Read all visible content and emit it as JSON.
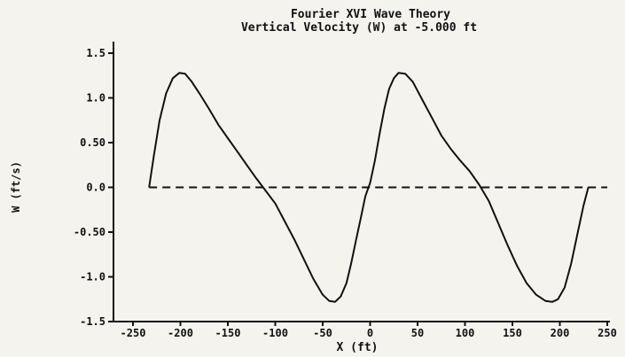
{
  "chart_data": {
    "type": "line",
    "title": "Fourier XVI   Wave Theory",
    "subtitle": "Vertical Velocity (W) at    -5.000 ft",
    "xlabel": "X  (ft)",
    "ylabel": "W (ft/s)",
    "xlim": [
      -250,
      250
    ],
    "ylim": [
      -1.5,
      1.5
    ],
    "xticks": [
      -250,
      -200,
      -150,
      -100,
      -50,
      0,
      50,
      100,
      150,
      200,
      250
    ],
    "xtick_labels": [
      "-250",
      "-200",
      "-150",
      "-100",
      "-50",
      "0",
      "50",
      "100",
      "150",
      "200",
      "250"
    ],
    "yticks": [
      1.5,
      1.0,
      0.5,
      0.0,
      -0.5,
      -1.0,
      -1.5
    ],
    "ytick_labels": [
      "1.5",
      "1.0",
      "0.50",
      "0.0",
      "-0.50",
      "-1.0",
      "-1.5"
    ],
    "grid": false,
    "series": [
      {
        "style": "solid",
        "color": "#111111",
        "x": [
          -233,
          -228,
          -222,
          -215,
          -208,
          -201,
          -195,
          -188,
          -180,
          -170,
          -160,
          -150,
          -140,
          -130,
          -120,
          -110,
          -100,
          -90,
          -80,
          -70,
          -60,
          -50,
          -43,
          -37,
          -31,
          -25,
          -20,
          -15,
          -10,
          -5,
          0,
          5,
          10,
          15,
          20,
          25,
          30,
          37,
          45,
          55,
          65,
          75,
          85,
          95,
          105,
          115,
          125,
          135,
          145,
          155,
          165,
          175,
          185,
          192,
          198,
          205,
          212,
          219,
          225,
          230
        ],
        "y": [
          0.0,
          0.35,
          0.75,
          1.05,
          1.22,
          1.28,
          1.27,
          1.18,
          1.05,
          0.88,
          0.7,
          0.55,
          0.4,
          0.25,
          0.1,
          -0.04,
          -0.18,
          -0.38,
          -0.58,
          -0.8,
          -1.02,
          -1.2,
          -1.27,
          -1.28,
          -1.22,
          -1.07,
          -0.85,
          -0.6,
          -0.35,
          -0.1,
          0.05,
          0.3,
          0.6,
          0.88,
          1.1,
          1.22,
          1.28,
          1.27,
          1.18,
          0.98,
          0.78,
          0.58,
          0.43,
          0.3,
          0.18,
          0.03,
          -0.15,
          -0.4,
          -0.65,
          -0.88,
          -1.07,
          -1.2,
          -1.27,
          -1.28,
          -1.25,
          -1.12,
          -0.85,
          -0.5,
          -0.2,
          0.0
        ]
      },
      {
        "style": "dashed",
        "color": "#111111",
        "x": [
          -233,
          250
        ],
        "y": [
          0.0,
          0.0
        ]
      }
    ]
  }
}
